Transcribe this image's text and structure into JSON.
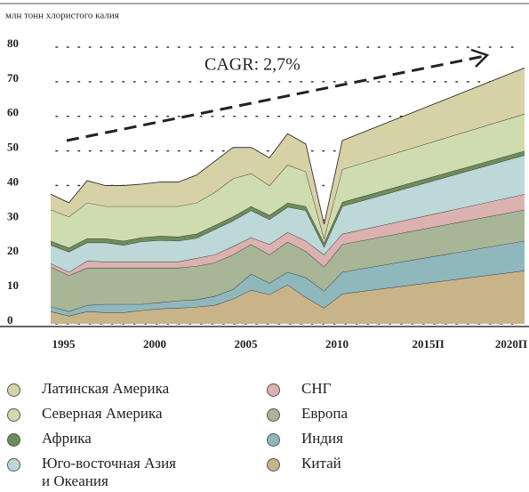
{
  "chart_data": {
    "type": "stacked_area",
    "subtitle": "млн тонн хлористого калия",
    "annotation": "CAGR: 2,7%",
    "x": [
      1994,
      1995,
      1996,
      1997,
      1998,
      1999,
      2000,
      2001,
      2002,
      2003,
      2004,
      2005,
      2006,
      2007,
      2008,
      2009,
      2010,
      2020
    ],
    "xlim": [
      1994,
      2020
    ],
    "xticks": [
      1995,
      2000,
      2005,
      2010,
      {
        "value": 2015,
        "label": "2015П"
      },
      {
        "value": 2020,
        "label": "2020П"
      }
    ],
    "ylim": [
      0,
      80
    ],
    "yticks": [
      0,
      10,
      20,
      30,
      40,
      50,
      60,
      70,
      80
    ],
    "grid": true,
    "series": [
      {
        "name": "Китай",
        "color": "#c9b48a",
        "values": [
          3.6,
          2.3,
          3.6,
          3.3,
          3.3,
          3.9,
          4.4,
          4.6,
          4.9,
          5.4,
          7.2,
          9.8,
          8.5,
          11.3,
          7.7,
          4.6,
          8.7,
          15.4
        ]
      },
      {
        "name": "Индия",
        "color": "#8fb8bd",
        "values": [
          1.4,
          1.3,
          1.8,
          2.4,
          2.4,
          1.8,
          1.8,
          2.1,
          2.1,
          2.6,
          2.8,
          4.6,
          3.3,
          3.7,
          5.7,
          4.9,
          6.3,
          8.6
        ]
      },
      {
        "name": "Европа",
        "color": "#a8b596",
        "values": [
          11.5,
          10.4,
          10.8,
          10.5,
          10.5,
          10.5,
          10,
          9.5,
          9.7,
          9.7,
          10,
          8.6,
          8.2,
          8.7,
          7.6,
          7,
          8,
          9
        ]
      },
      {
        "name": "СНГ",
        "color": "#dbb2b0",
        "values": [
          1,
          1,
          2,
          1.8,
          1.8,
          1.8,
          1.8,
          1.8,
          2.3,
          2.3,
          2.4,
          2,
          3,
          2.8,
          3,
          3.5,
          3,
          4.5
        ]
      },
      {
        "name": "Юго-восточная Азия и Океания",
        "color": "#bcd8d8",
        "values": [
          5.3,
          5.8,
          5.3,
          5.5,
          4.8,
          5.8,
          6.2,
          6,
          5.8,
          7.3,
          7.4,
          7.8,
          7.2,
          7.3,
          8.8,
          2.2,
          8,
          11.3
        ]
      },
      {
        "name": "Африка",
        "color": "#6f8c5a",
        "values": [
          1.2,
          1.2,
          1.2,
          1.2,
          1.2,
          1.2,
          1.2,
          1.2,
          1.2,
          1.2,
          1.2,
          1.2,
          1.2,
          1.2,
          1.2,
          1.2,
          1.2,
          1.2
        ]
      },
      {
        "name": "Северная Америка",
        "color": "#cfdcb0",
        "values": [
          9,
          9,
          10.3,
          9.3,
          10,
          9,
          8.6,
          8.8,
          9,
          9.5,
          11,
          9.5,
          8.6,
          11,
          10,
          1.3,
          9.5,
          10.7
        ]
      },
      {
        "name": "Латинская Америка",
        "color": "#d7d1a6",
        "values": [
          4.5,
          4,
          6.4,
          6,
          6,
          6.4,
          7,
          7,
          8,
          9,
          9,
          7.5,
          8,
          9,
          8,
          4.1,
          8.3,
          13.3
        ]
      }
    ]
  }
}
